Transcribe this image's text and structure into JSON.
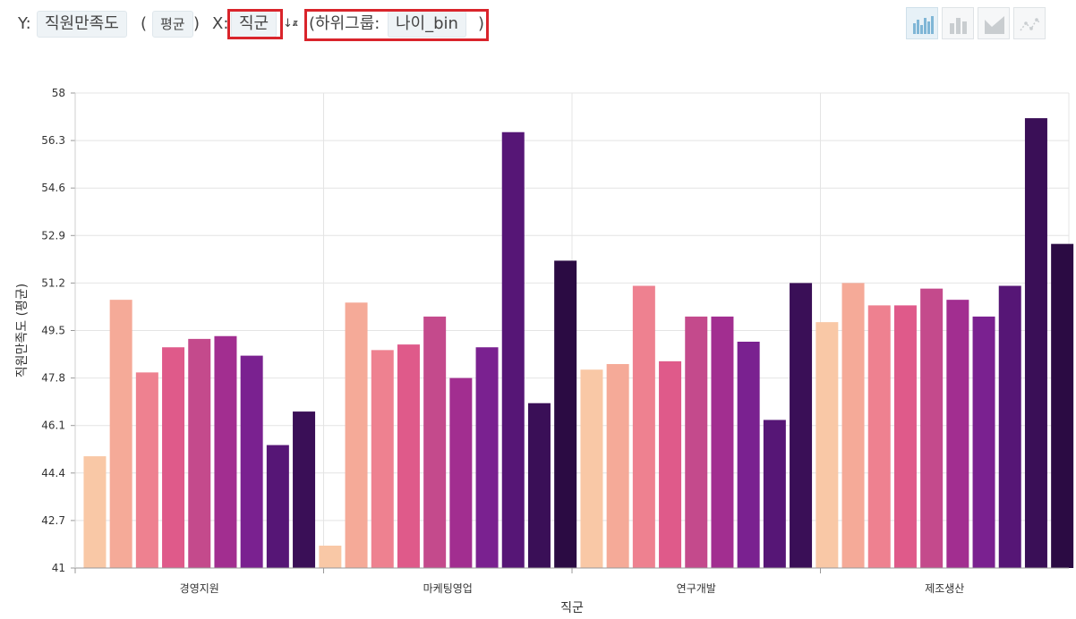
{
  "toolbar": {
    "y_label": "Y:",
    "y_field": "직원만족도",
    "agg_open": "(",
    "agg": "평균",
    "agg_close": ")",
    "x_label": "X:",
    "x_field": "직군",
    "sort_icon": "sort-alpha-icon",
    "subgroup_prefix": "(하위그룹:",
    "subgroup_field": "나이_bin",
    "subgroup_close": ")",
    "chart_types": [
      {
        "name": "bar-chart-icon",
        "active": true
      },
      {
        "name": "histogram-icon",
        "active": false
      },
      {
        "name": "area-chart-icon",
        "active": false
      },
      {
        "name": "line-chart-icon",
        "active": false
      }
    ]
  },
  "chart_data": {
    "type": "bar",
    "xlabel": "직군",
    "ylabel": "직원만족도 (평균)",
    "ylim": [
      41,
      58
    ],
    "yticks": [
      "41",
      "42.7",
      "44.4",
      "46.1",
      "47.8",
      "49.5",
      "51.2",
      "52.9",
      "54.6",
      "56.3",
      "58"
    ],
    "categories": [
      "경영지원",
      "마케팅영업",
      "연구개발",
      "제조생산"
    ],
    "series_colors": [
      "#f9c8a6",
      "#f5aa98",
      "#ee8190",
      "#df5a8a",
      "#c44a8c",
      "#a22e90",
      "#7a2190",
      "#561676",
      "#3a0f57",
      "#2b0b43"
    ],
    "groups": [
      [
        45.0,
        50.6,
        48.0,
        48.9,
        49.2,
        49.3,
        48.6,
        45.4,
        46.6
      ],
      [
        41.8,
        50.5,
        48.8,
        49.0,
        50.0,
        47.8,
        48.9,
        56.6,
        46.9,
        52.0
      ],
      [
        48.1,
        48.3,
        51.1,
        48.4,
        50.0,
        50.0,
        49.1,
        46.3,
        51.2
      ],
      [
        49.8,
        51.2,
        50.4,
        50.4,
        51.0,
        50.6,
        50.0,
        51.1,
        57.1,
        52.6
      ]
    ]
  }
}
